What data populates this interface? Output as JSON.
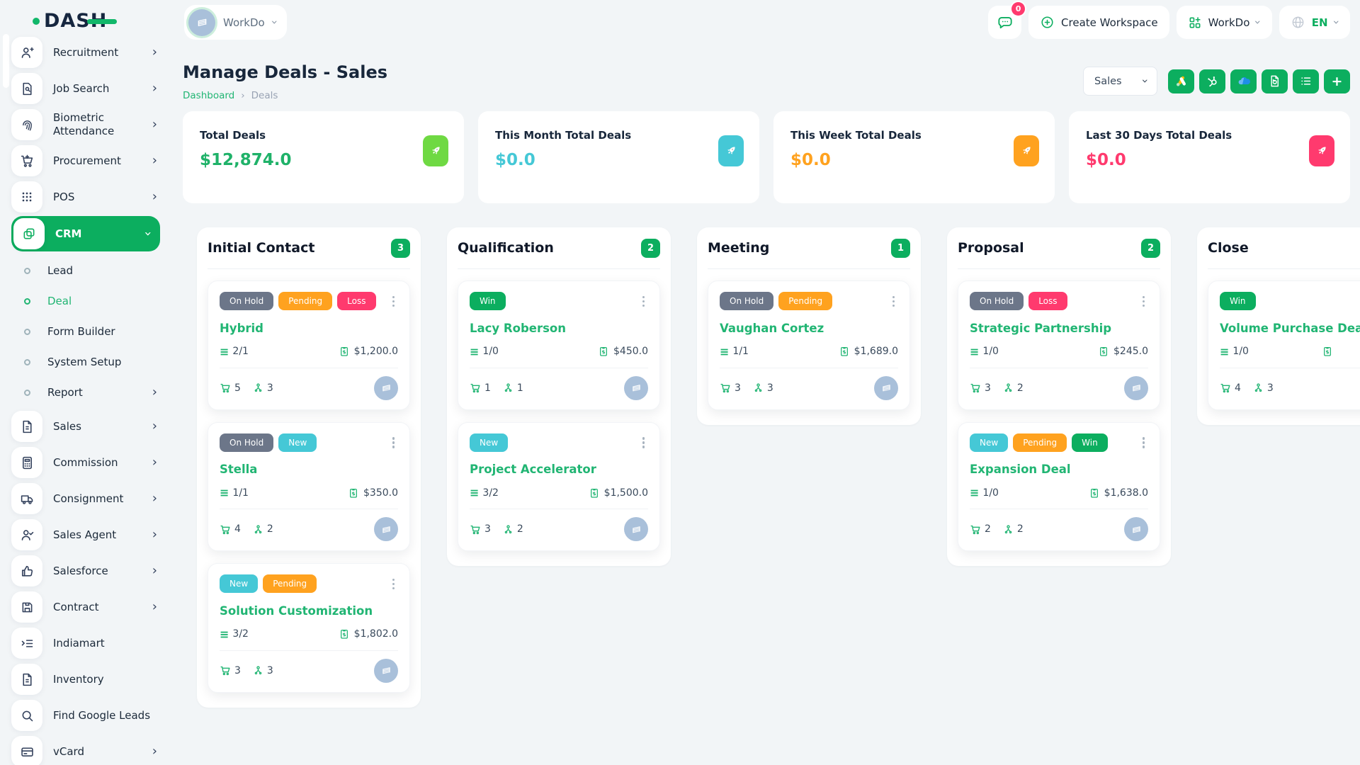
{
  "brand": {
    "name": "DASH"
  },
  "topbar": {
    "workspace_pill": {
      "label": "WorkDo",
      "icon": "building-icon"
    },
    "messages": {
      "icon": "chat-icon",
      "badge": "0"
    },
    "create_workspace": {
      "label": "Create Workspace",
      "icon": "circle-plus-icon"
    },
    "workspace_menu": {
      "label": "WorkDo",
      "icon": "grid-plus-icon"
    },
    "language": {
      "code": "EN",
      "icon": "globe-icon"
    }
  },
  "sidebar": {
    "items": [
      {
        "label": "Recruitment",
        "icon": "person-plus-icon",
        "chevron": "right"
      },
      {
        "label": "Job Search",
        "icon": "document-search-icon",
        "chevron": "right"
      },
      {
        "label": "Biometric Attendance",
        "icon": "fingerprint-icon",
        "chevron": "right"
      },
      {
        "label": "Procurement",
        "icon": "cart-icon",
        "chevron": "right"
      },
      {
        "label": "POS",
        "icon": "grid-dots-icon",
        "chevron": "right"
      },
      {
        "label": "CRM",
        "icon": "copy-icon",
        "chevron": "down",
        "active": true
      },
      {
        "label": "Lead",
        "icon": "bullet"
      },
      {
        "label": "Deal",
        "icon": "bullet",
        "active": true
      },
      {
        "label": "Form Builder",
        "icon": "bullet"
      },
      {
        "label": "System Setup",
        "icon": "bullet"
      },
      {
        "label": "Report",
        "icon": "bullet",
        "chevron": "right"
      },
      {
        "label": "Sales",
        "icon": "file-icon",
        "chevron": "right"
      },
      {
        "label": "Commission",
        "icon": "calculator-icon",
        "chevron": "right"
      },
      {
        "label": "Consignment",
        "icon": "truck-icon",
        "chevron": "right"
      },
      {
        "label": "Sales Agent",
        "icon": "person-check-icon",
        "chevron": "right"
      },
      {
        "label": "Salesforce",
        "icon": "thumbs-up-icon",
        "chevron": "right"
      },
      {
        "label": "Contract",
        "icon": "floppy-icon",
        "chevron": "right"
      },
      {
        "label": "Indiamart",
        "icon": "list-arrow-icon"
      },
      {
        "label": "Inventory",
        "icon": "file-icon"
      },
      {
        "label": "Find Google Leads",
        "icon": "search-icon"
      },
      {
        "label": "vCard",
        "icon": "card-icon",
        "chevron": "right"
      }
    ]
  },
  "page": {
    "title": "Manage Deals - Sales",
    "breadcrumb": {
      "home": "Dashboard",
      "separator": "›",
      "current": "Deals"
    },
    "filter": {
      "value": "Sales"
    },
    "toolbar_buttons": [
      {
        "icon": "google-ads-icon"
      },
      {
        "icon": "hubspot-icon"
      },
      {
        "icon": "onedrive-icon"
      },
      {
        "icon": "export-doc-icon"
      },
      {
        "icon": "list-view-icon"
      },
      {
        "icon": "plus-icon",
        "glyph": "+"
      }
    ]
  },
  "stats": [
    {
      "label": "Total Deals",
      "value": "$12,874.0",
      "value_color": "#1fb269",
      "chip_bg": "#6fd943"
    },
    {
      "label": "This Month Total Deals",
      "value": "$0.0",
      "value_color": "#45c8d6",
      "chip_bg": "#45c8d6"
    },
    {
      "label": "This Week Total Deals",
      "value": "$0.0",
      "value_color": "#ffa21f",
      "chip_bg": "#ffa21f"
    },
    {
      "label": "Last 30 Days Total Deals",
      "value": "$0.0",
      "value_color": "#ff3a6e",
      "chip_bg": "#ff3a6e"
    }
  ],
  "kanban": {
    "columns": [
      {
        "title": "Initial Contact",
        "count": "3",
        "cards": [
          {
            "badges": [
              {
                "label": "On Hold",
                "bg": "#6c7689"
              },
              {
                "label": "Pending",
                "bg": "#ffa21f"
              },
              {
                "label": "Loss",
                "bg": "#ff3a6e"
              }
            ],
            "title": "Hybrid",
            "tasks": "2/1",
            "value": "$1,200.0",
            "products": "5",
            "users": "3"
          },
          {
            "badges": [
              {
                "label": "On Hold",
                "bg": "#6c7689"
              },
              {
                "label": "New",
                "bg": "#45c8d6"
              }
            ],
            "title": "Stella",
            "tasks": "1/1",
            "value": "$350.0",
            "products": "4",
            "users": "2"
          },
          {
            "badges": [
              {
                "label": "New",
                "bg": "#45c8d6"
              },
              {
                "label": "Pending",
                "bg": "#ffa21f"
              }
            ],
            "title": "Solution Customization",
            "tasks": "3/2",
            "value": "$1,802.0",
            "products": "3",
            "users": "3"
          }
        ]
      },
      {
        "title": "Qualification",
        "count": "2",
        "cards": [
          {
            "badges": [
              {
                "label": "Win",
                "bg": "#0cae5f"
              }
            ],
            "title": "Lacy Roberson",
            "tasks": "1/0",
            "value": "$450.0",
            "products": "1",
            "users": "1"
          },
          {
            "badges": [
              {
                "label": "New",
                "bg": "#45c8d6"
              }
            ],
            "title": "Project Accelerator",
            "tasks": "3/2",
            "value": "$1,500.0",
            "products": "3",
            "users": "2"
          }
        ]
      },
      {
        "title": "Meeting",
        "count": "1",
        "cards": [
          {
            "badges": [
              {
                "label": "On Hold",
                "bg": "#6c7689"
              },
              {
                "label": "Pending",
                "bg": "#ffa21f"
              }
            ],
            "title": "Vaughan Cortez",
            "tasks": "1/1",
            "value": "$1,689.0",
            "products": "3",
            "users": "3"
          }
        ]
      },
      {
        "title": "Proposal",
        "count": "2",
        "cards": [
          {
            "badges": [
              {
                "label": "On Hold",
                "bg": "#6c7689"
              },
              {
                "label": "Loss",
                "bg": "#ff3a6e"
              }
            ],
            "title": "Strategic Partnership",
            "tasks": "1/0",
            "value": "$245.0",
            "products": "3",
            "users": "2"
          },
          {
            "badges": [
              {
                "label": "New",
                "bg": "#45c8d6"
              },
              {
                "label": "Pending",
                "bg": "#ffa21f"
              },
              {
                "label": "Win",
                "bg": "#0cae5f"
              }
            ],
            "title": "Expansion Deal",
            "tasks": "1/0",
            "value": "$1,638.0",
            "products": "2",
            "users": "2"
          }
        ]
      },
      {
        "title": "Close",
        "count": "",
        "cards": [
          {
            "badges": [
              {
                "label": "Win",
                "bg": "#0cae5f"
              }
            ],
            "title": "Volume Purchase Deal",
            "tasks": "1/0",
            "value": "",
            "products": "4",
            "users": "3"
          }
        ]
      }
    ]
  }
}
